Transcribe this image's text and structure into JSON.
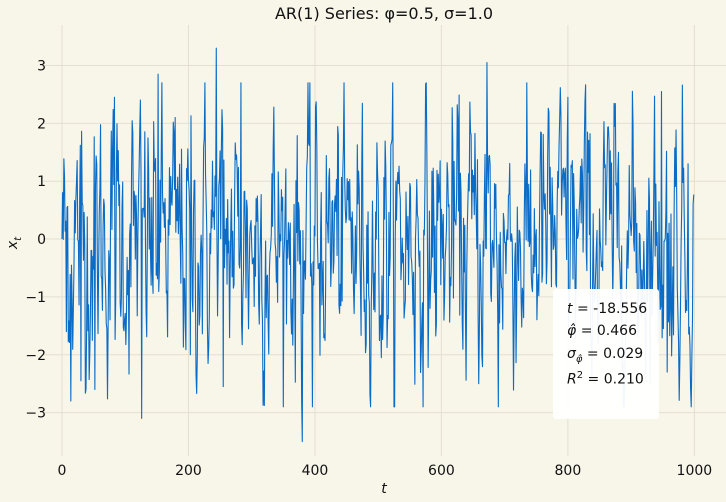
{
  "chart_data": {
    "type": "line",
    "title": "AR(1) Series: φ=0.5, σ=1.0",
    "xlabel": "t",
    "ylabel": "x_t",
    "xlim": [
      -30,
      1050
    ],
    "ylim": [
      -3.75,
      3.7
    ],
    "xticks": [
      0,
      200,
      400,
      600,
      800,
      1000
    ],
    "yticks": [
      -3,
      -2,
      -1,
      0,
      1,
      2,
      3
    ],
    "grid": true,
    "color": "#0a6cc6",
    "n_points": 1000,
    "anchor_points": [
      {
        "x": 0,
        "y": 0.0
      },
      {
        "x": 7,
        "y": -1.6
      },
      {
        "x": 14,
        "y": -2.8
      },
      {
        "x": 30,
        "y": -2.45
      },
      {
        "x": 52,
        "y": -2.6
      },
      {
        "x": 83,
        "y": 2.45
      },
      {
        "x": 126,
        "y": -3.1
      },
      {
        "x": 152,
        "y": 2.85
      },
      {
        "x": 203,
        "y": -2.0
      },
      {
        "x": 244,
        "y": 3.3
      },
      {
        "x": 255,
        "y": -2.55
      },
      {
        "x": 283,
        "y": 2.7
      },
      {
        "x": 380,
        "y": -3.5
      },
      {
        "x": 396,
        "y": -2.9
      },
      {
        "x": 505,
        "y": -2.05
      },
      {
        "x": 672,
        "y": 3.05
      },
      {
        "x": 690,
        "y": -2.9
      },
      {
        "x": 800,
        "y": 2.45
      },
      {
        "x": 948,
        "y": 2.55
      },
      {
        "x": 957,
        "y": -2.3
      },
      {
        "x": 990,
        "y": 1.3
      }
    ],
    "annotation": {
      "t": "-18.556",
      "phi_hat": "0.466",
      "sigma_phi_hat": "0.029",
      "r_squared": "0.210"
    }
  }
}
